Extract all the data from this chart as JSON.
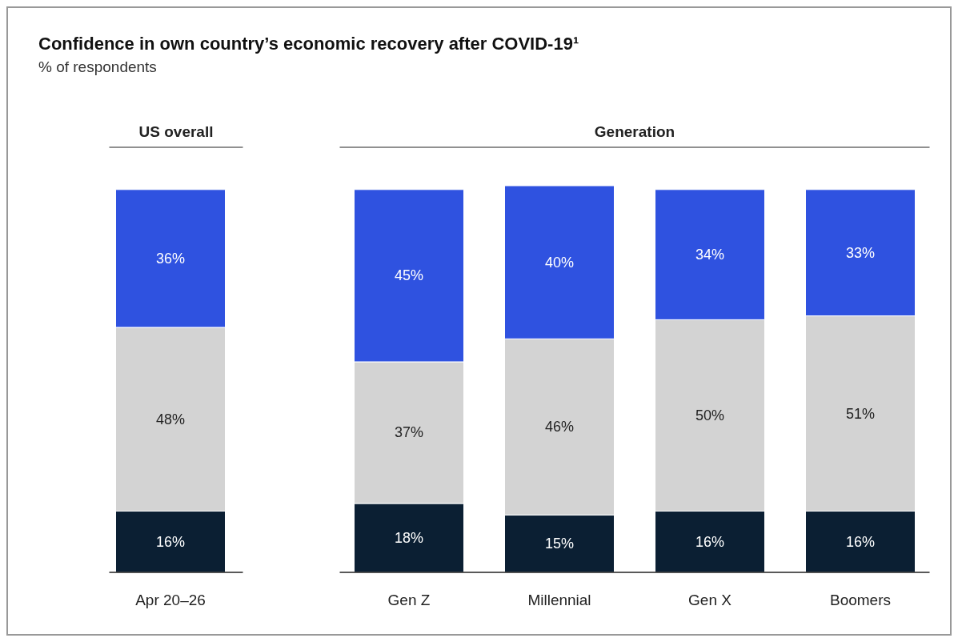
{
  "chart_data": {
    "type": "bar",
    "stacked": true,
    "title": "Confidence in own country’s economic recovery after COVID-19¹",
    "subtitle": "% of respondents",
    "annotations": [
      "US overall",
      "Generation"
    ],
    "categories": [
      "Apr 20–26",
      "Gen Z",
      "Millennial",
      "Gen X",
      "Boomers"
    ],
    "series": [
      {
        "color": "#0b1f33",
        "values": [
          16,
          18,
          15,
          16,
          16
        ],
        "value_labels": [
          "16%",
          "18%",
          "15%",
          "16%",
          "16%"
        ]
      },
      {
        "color": "#d3d3d3",
        "values": [
          48,
          37,
          46,
          50,
          51
        ],
        "value_labels": [
          "48%",
          "37%",
          "46%",
          "50%",
          "51%"
        ]
      },
      {
        "color": "#2f52e0",
        "values": [
          36,
          45,
          40,
          34,
          33
        ],
        "value_labels": [
          "36%",
          "45%",
          "40%",
          "34%",
          "33%"
        ]
      }
    ]
  }
}
